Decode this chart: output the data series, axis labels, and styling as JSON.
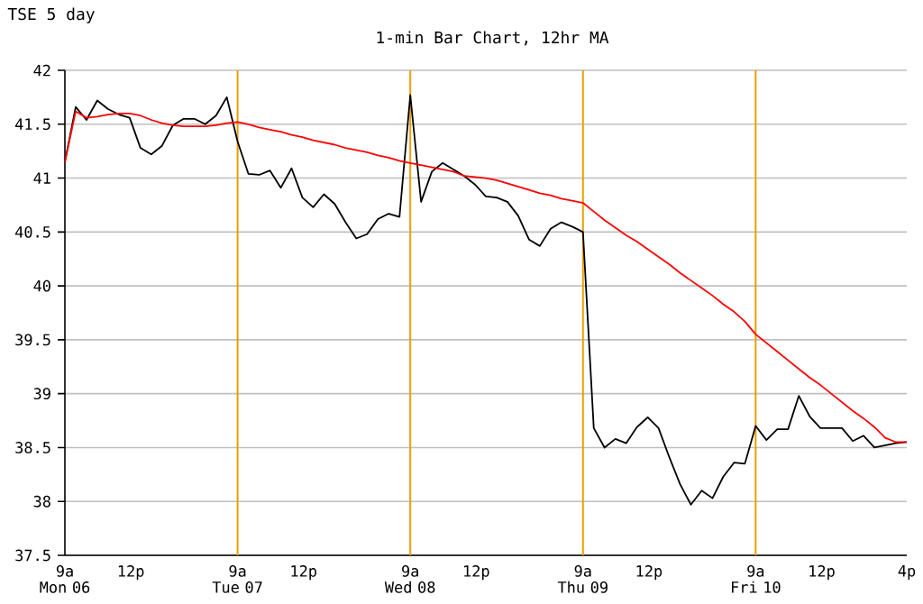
{
  "chart_data": {
    "type": "line",
    "title": "TSE 5 day",
    "subtitle": "1-min Bar Chart, 12hr MA",
    "categories": [
      "9a Mon 06",
      null,
      null,
      null,
      null,
      null,
      "12p",
      null,
      null,
      null,
      null,
      null,
      null,
      null,
      null,
      null,
      "9a Tue 07",
      null,
      null,
      null,
      null,
      null,
      "12p",
      null,
      null,
      null,
      null,
      null,
      null,
      null,
      null,
      null,
      "9a Wed 08",
      null,
      null,
      null,
      null,
      null,
      "12p",
      null,
      null,
      null,
      null,
      null,
      null,
      null,
      null,
      null,
      "9a Thu 09",
      null,
      null,
      null,
      null,
      null,
      "12p",
      null,
      null,
      null,
      null,
      null,
      null,
      null,
      null,
      null,
      "9a Fri 10",
      null,
      null,
      null,
      null,
      null,
      "12p",
      null,
      null,
      null,
      null,
      null,
      null,
      null,
      "4p"
    ],
    "ylim": [
      37.5,
      42
    ],
    "yticks": [
      37.5,
      38,
      38.5,
      39,
      39.5,
      40,
      40.5,
      41,
      41.5,
      42
    ],
    "grid": "y",
    "marker": "none",
    "line_style": "solid",
    "series": [
      {
        "color": "#000000",
        "values": [
          41.15,
          41.66,
          41.54,
          41.72,
          41.64,
          41.59,
          41.56,
          41.28,
          41.22,
          41.3,
          41.49,
          41.55,
          41.55,
          41.5,
          41.58,
          41.75,
          41.34,
          41.04,
          41.03,
          41.07,
          40.91,
          41.09,
          40.82,
          40.73,
          40.85,
          40.76,
          40.59,
          40.44,
          40.48,
          40.62,
          40.67,
          40.64,
          41.77,
          40.78,
          41.06,
          41.14,
          41.08,
          41.02,
          40.94,
          40.83,
          40.82,
          40.78,
          40.65,
          40.43,
          40.37,
          40.53,
          40.59,
          40.55,
          40.5,
          38.68,
          38.5,
          38.58,
          38.54,
          38.69,
          38.78,
          38.68,
          38.41,
          38.16,
          37.97,
          38.1,
          38.03,
          38.23,
          38.36,
          38.35,
          38.7,
          38.57,
          38.67,
          38.67,
          38.98,
          38.79,
          38.68,
          38.68,
          38.68,
          38.56,
          38.61,
          38.5,
          38.52,
          38.54,
          38.55
        ]
      },
      {
        "color": "#ff0000",
        "values": [
          41.15,
          41.62,
          41.56,
          41.57,
          41.59,
          41.6,
          41.6,
          41.58,
          41.54,
          41.51,
          41.49,
          41.48,
          41.48,
          41.48,
          41.49,
          41.51,
          41.52,
          41.5,
          41.47,
          41.45,
          41.43,
          41.4,
          41.38,
          41.35,
          41.33,
          41.31,
          41.28,
          41.26,
          41.24,
          41.21,
          41.19,
          41.16,
          41.14,
          41.12,
          41.1,
          41.08,
          41.06,
          41.02,
          41.01,
          41.0,
          40.98,
          40.95,
          40.92,
          40.89,
          40.86,
          40.84,
          40.81,
          40.79,
          40.77,
          40.69,
          40.61,
          40.54,
          40.47,
          40.41,
          40.34,
          40.27,
          40.2,
          40.12,
          40.05,
          39.98,
          39.91,
          39.83,
          39.76,
          39.67,
          39.55,
          39.47,
          39.39,
          39.31,
          39.23,
          39.15,
          39.08,
          39.0,
          38.92,
          38.84,
          38.77,
          38.69,
          38.59,
          38.55,
          38.55
        ]
      }
    ]
  }
}
